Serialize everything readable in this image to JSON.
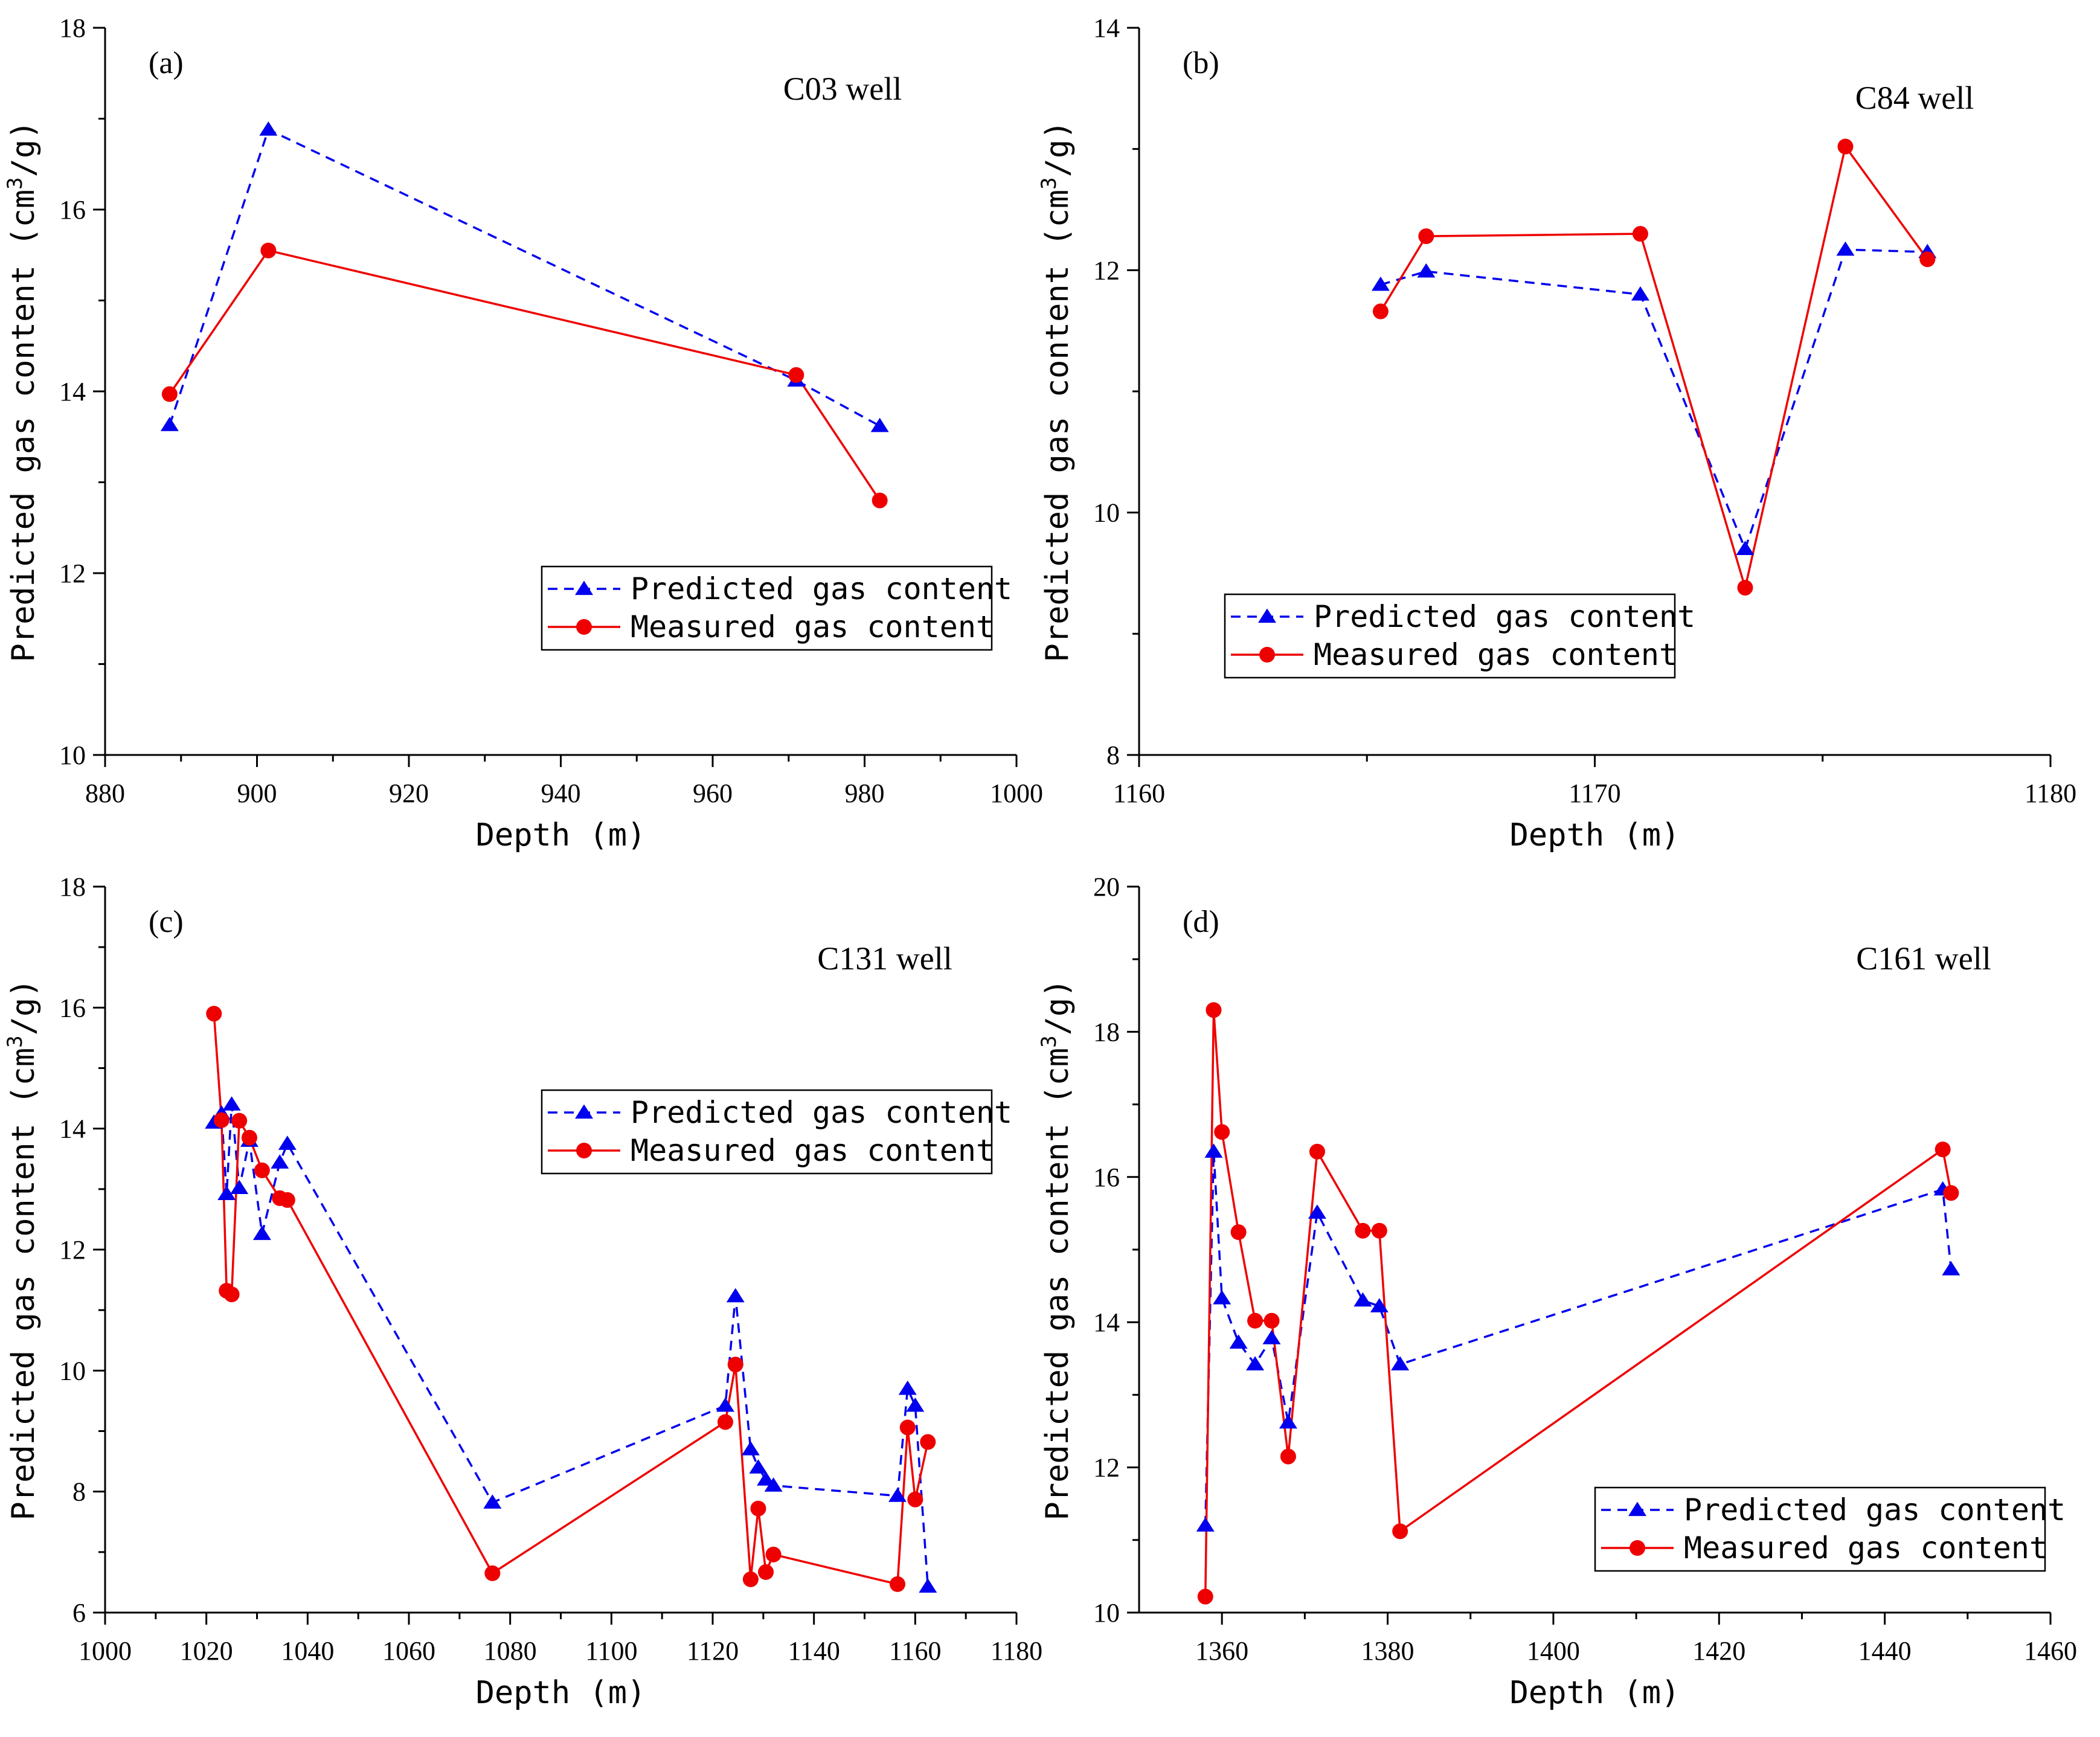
{
  "figure": {
    "ylabel_prefix": "Predicted gas content",
    "ylabel_unit_open": "(cm",
    "ylabel_unit_sup": "3",
    "ylabel_unit_close": "/g)"
  },
  "chart_data": [
    {
      "type": "line",
      "panel_label": "(a)",
      "title": "C03 well",
      "xlabel": "Depth (m)",
      "ylabel": "Predicted gas content (cm3/g)",
      "xlim": [
        880,
        1000
      ],
      "ylim": [
        10,
        18
      ],
      "xticks": [
        880,
        900,
        920,
        940,
        960,
        980,
        1000
      ],
      "yticks": [
        10,
        12,
        14,
        16,
        18
      ],
      "legend_position": "middle-right",
      "series": [
        {
          "name": "Predicted gas content",
          "color": "#0000ee",
          "style": "dashed",
          "marker": "triangle",
          "x": [
            888.5,
            901.5,
            971.0,
            982.0
          ],
          "y": [
            13.63,
            16.88,
            14.12,
            13.62
          ]
        },
        {
          "name": "Measured gas content",
          "color": "#ee0000",
          "style": "solid",
          "marker": "circle",
          "x": [
            888.5,
            901.5,
            971.0,
            982.0
          ],
          "y": [
            13.97,
            15.55,
            14.18,
            12.8
          ]
        }
      ]
    },
    {
      "type": "line",
      "panel_label": "(b)",
      "title": "C84 well",
      "xlabel": "Depth (m)",
      "ylabel": "Predicted gas content (cm3/g)",
      "xlim": [
        1160,
        1180
      ],
      "ylim": [
        8,
        14
      ],
      "xticks": [
        1160,
        1170,
        1180
      ],
      "yticks": [
        8,
        10,
        12,
        14
      ],
      "legend_position": "lower-right",
      "series": [
        {
          "name": "Predicted gas content",
          "color": "#0000ee",
          "style": "dashed",
          "marker": "triangle",
          "x": [
            1165.3,
            1166.3,
            1171.0,
            1173.3,
            1175.5,
            1177.3
          ],
          "y": [
            11.88,
            11.99,
            11.8,
            9.7,
            12.17,
            12.15
          ]
        },
        {
          "name": "Measured gas content",
          "color": "#ee0000",
          "style": "solid",
          "marker": "circle",
          "x": [
            1165.3,
            1166.3,
            1171.0,
            1173.3,
            1175.5,
            1177.3
          ],
          "y": [
            11.66,
            12.28,
            12.3,
            9.38,
            13.02,
            12.09
          ]
        }
      ]
    },
    {
      "type": "line",
      "panel_label": "(c)",
      "title": "C131 well",
      "xlabel": "Depth (m)",
      "ylabel": "Predicted gas content (cm3/g)",
      "xlim": [
        1000,
        1180
      ],
      "ylim": [
        6,
        18
      ],
      "xticks": [
        1000,
        1020,
        1040,
        1060,
        1080,
        1100,
        1120,
        1140,
        1160,
        1180
      ],
      "yticks": [
        6,
        8,
        10,
        12,
        14,
        16,
        18
      ],
      "legend_position": "upper-right",
      "series": [
        {
          "name": "Predicted gas content",
          "color": "#0000ee",
          "style": "dashed",
          "marker": "triangle",
          "x": [
            1021.5,
            1023.0,
            1024.0,
            1025.0,
            1026.5,
            1028.5,
            1031.0,
            1034.5,
            1036.0,
            1076.5,
            1122.5,
            1124.5,
            1127.5,
            1129.0,
            1130.5,
            1132.0,
            1156.5,
            1158.5,
            1160.0,
            1162.5
          ],
          "y": [
            14.1,
            14.25,
            12.92,
            14.4,
            13.02,
            13.8,
            12.26,
            13.44,
            13.75,
            7.82,
            9.42,
            11.23,
            8.7,
            8.4,
            8.2,
            8.1,
            7.93,
            9.7,
            9.42,
            6.43
          ]
        },
        {
          "name": "Measured gas content",
          "color": "#ee0000",
          "style": "solid",
          "marker": "circle",
          "x": [
            1021.5,
            1023.0,
            1024.0,
            1025.0,
            1026.5,
            1028.5,
            1031.0,
            1034.5,
            1036.0,
            1076.5,
            1122.5,
            1124.5,
            1127.5,
            1129.0,
            1130.5,
            1132.0,
            1156.5,
            1158.5,
            1160.0,
            1162.5
          ],
          "y": [
            15.9,
            14.14,
            11.32,
            11.26,
            14.13,
            13.85,
            13.31,
            12.85,
            12.82,
            6.65,
            9.15,
            10.1,
            6.55,
            7.72,
            6.67,
            6.96,
            6.47,
            9.06,
            7.87,
            8.82
          ]
        }
      ]
    },
    {
      "type": "line",
      "panel_label": "(d)",
      "title": "C161 well",
      "xlabel": "Depth (m)",
      "ylabel": "Predicted gas content (cm3/g)",
      "xlim": [
        1350,
        1460
      ],
      "ylim": [
        10,
        20
      ],
      "xticks": [
        1360,
        1380,
        1400,
        1420,
        1440,
        1460
      ],
      "yticks": [
        10,
        12,
        14,
        16,
        18,
        20
      ],
      "legend_position": "lower-right",
      "series": [
        {
          "name": "Predicted gas content",
          "color": "#0000ee",
          "style": "dashed",
          "marker": "triangle",
          "x": [
            1358.0,
            1359.0,
            1360.0,
            1362.0,
            1364.0,
            1366.0,
            1368.0,
            1371.5,
            1377.0,
            1379.0,
            1381.5,
            1447.0,
            1448.0
          ],
          "y": [
            11.2,
            16.35,
            14.33,
            13.72,
            13.42,
            13.78,
            12.62,
            15.51,
            14.3,
            14.22,
            13.42,
            15.83,
            14.73
          ]
        },
        {
          "name": "Measured gas content",
          "color": "#ee0000",
          "style": "solid",
          "marker": "circle",
          "x": [
            1358.0,
            1359.0,
            1360.0,
            1362.0,
            1364.0,
            1366.0,
            1368.0,
            1371.5,
            1377.0,
            1379.0,
            1381.5,
            1447.0,
            1448.0
          ],
          "y": [
            10.22,
            18.3,
            16.62,
            15.24,
            14.02,
            14.02,
            12.15,
            16.35,
            15.26,
            15.26,
            11.12,
            16.38,
            15.78
          ]
        }
      ]
    }
  ]
}
